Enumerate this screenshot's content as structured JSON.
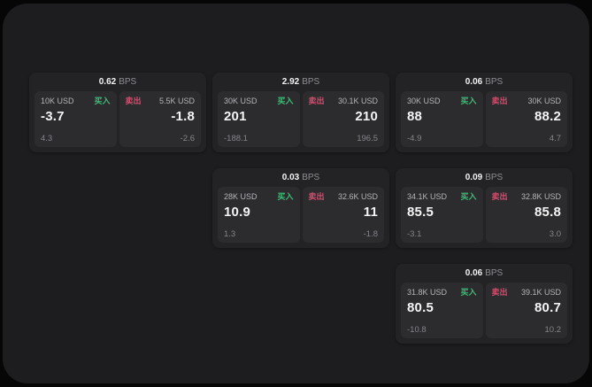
{
  "labels": {
    "bps_unit": "BPS",
    "buy": "买入",
    "sell": "卖出"
  },
  "colors": {
    "background": "#060607",
    "panel": "#1d1d1f",
    "card": "#232326",
    "tile": "#2c2c2f",
    "buy_accent": "#3ebd77",
    "sell_accent": "#d44f6f",
    "value_text": "#f4f4f5",
    "muted_text": "#85858a"
  },
  "cards": [
    {
      "bps": "0.62",
      "col": 1,
      "row": 1,
      "buy": {
        "amount": "10K USD",
        "value": "-3.7",
        "delta": "4.3"
      },
      "sell": {
        "amount": "5.5K USD",
        "value": "-1.8",
        "delta": "-2.6"
      }
    },
    {
      "bps": "2.92",
      "col": 2,
      "row": 1,
      "buy": {
        "amount": "30K USD",
        "value": "201",
        "delta": "-188.1"
      },
      "sell": {
        "amount": "30.1K USD",
        "value": "210",
        "delta": "196.5"
      }
    },
    {
      "bps": "0.06",
      "col": 3,
      "row": 1,
      "buy": {
        "amount": "30K USD",
        "value": "88",
        "delta": "-4.9"
      },
      "sell": {
        "amount": "30K USD",
        "value": "88.2",
        "delta": "4.7"
      }
    },
    {
      "bps": "0.03",
      "col": 2,
      "row": 2,
      "buy": {
        "amount": "28K USD",
        "value": "10.9",
        "delta": "1.3"
      },
      "sell": {
        "amount": "32.6K USD",
        "value": "11",
        "delta": "-1.8"
      }
    },
    {
      "bps": "0.09",
      "col": 3,
      "row": 2,
      "buy": {
        "amount": "34.1K USD",
        "value": "85.5",
        "delta": "-3.1"
      },
      "sell": {
        "amount": "32.8K USD",
        "value": "85.8",
        "delta": "3.0"
      }
    },
    {
      "bps": "0.06",
      "col": 3,
      "row": 3,
      "buy": {
        "amount": "31.8K USD",
        "value": "80.5",
        "delta": "-10.8"
      },
      "sell": {
        "amount": "39.1K USD",
        "value": "80.7",
        "delta": "10.2"
      }
    }
  ]
}
